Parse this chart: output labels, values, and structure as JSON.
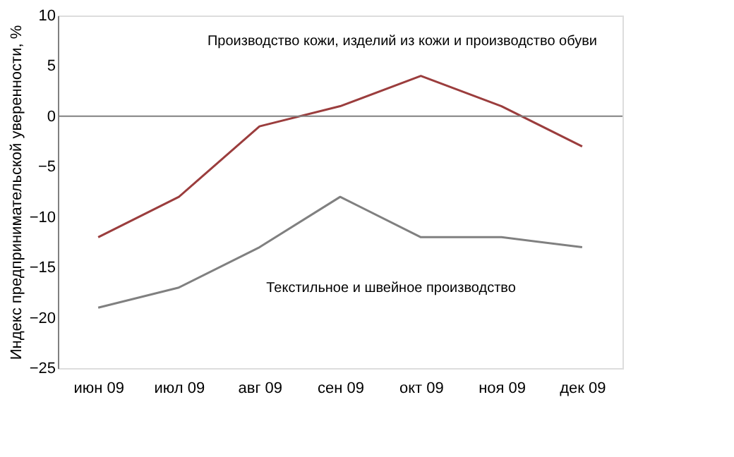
{
  "chart_data": {
    "type": "line",
    "ylabel": "Индекс предпринимательской уверенности, %",
    "categories": [
      "июн 09",
      "июл 09",
      "авг 09",
      "сен 09",
      "окт 09",
      "ноя 09",
      "дек 09"
    ],
    "series": [
      {
        "color": "#9b3d3d",
        "values": [
          -12,
          -8,
          -1,
          1,
          4,
          1,
          -3
        ]
      },
      {
        "color": "#808080",
        "values": [
          -19,
          -17,
          -13,
          -8,
          -12,
          -12,
          -13
        ]
      }
    ],
    "annotations": [
      "Производство кожи, изделий из кожи и производство обуви",
      "Текстильное и швейное производство"
    ],
    "ylim": [
      -25,
      10
    ],
    "yticks": [
      -25,
      -20,
      -15,
      -10,
      -5,
      0,
      5,
      10
    ],
    "ref_lines": [
      {
        "axis": "y",
        "value": 0,
        "color": "#808080"
      }
    ],
    "marker": "none",
    "line_style": "solid"
  }
}
